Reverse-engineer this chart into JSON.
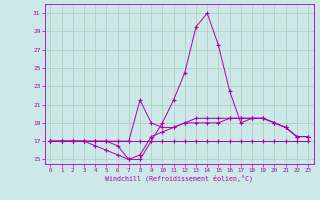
{
  "xlabel": "Windchill (Refroidissement éolien,°C)",
  "bg_color": "#cce8e8",
  "grid_color": "#aaccbb",
  "line_color": "#aa00aa",
  "xlim": [
    -0.5,
    23.5
  ],
  "ylim": [
    14.5,
    32.0
  ],
  "yticks": [
    15,
    17,
    19,
    21,
    23,
    25,
    27,
    29,
    31
  ],
  "xticks": [
    0,
    1,
    2,
    3,
    4,
    5,
    6,
    7,
    8,
    9,
    10,
    11,
    12,
    13,
    14,
    15,
    16,
    17,
    18,
    19,
    20,
    21,
    22,
    23
  ],
  "series": [
    {
      "x": [
        0,
        1,
        2,
        3,
        4,
        5,
        6,
        7,
        8,
        9,
        10,
        11,
        12,
        13,
        14,
        15,
        16,
        17,
        18,
        19,
        20,
        21,
        22,
        23
      ],
      "y": [
        17,
        17,
        17,
        17,
        17,
        17,
        17,
        17,
        17,
        17,
        17,
        17,
        17,
        17,
        17,
        17,
        17,
        17,
        17,
        17,
        17,
        17,
        17,
        17
      ]
    },
    {
      "x": [
        0,
        1,
        2,
        3,
        4,
        5,
        6,
        7,
        8,
        9,
        10,
        11,
        12,
        13,
        14,
        15,
        16,
        17,
        18,
        19,
        20,
        21,
        22,
        23
      ],
      "y": [
        17,
        17,
        17,
        17,
        16.5,
        16,
        15.5,
        15,
        15.5,
        17.5,
        18,
        18.5,
        19,
        19.5,
        19.5,
        19.5,
        19.5,
        19.5,
        19.5,
        19.5,
        19,
        18.5,
        17.5,
        17.5
      ]
    },
    {
      "x": [
        0,
        1,
        2,
        3,
        4,
        5,
        6,
        7,
        8,
        9,
        10,
        11,
        12,
        13,
        14,
        15,
        16,
        17,
        18,
        19,
        20,
        21,
        22,
        23
      ],
      "y": [
        17,
        17,
        17,
        17,
        17,
        17,
        16.5,
        15,
        15,
        17,
        19,
        21.5,
        24.5,
        29.5,
        31,
        27.5,
        22.5,
        19,
        19.5,
        19.5,
        19,
        18.5,
        17.5,
        17.5
      ]
    },
    {
      "x": [
        0,
        1,
        2,
        3,
        4,
        5,
        6,
        7,
        8,
        9,
        10,
        11,
        12,
        13,
        14,
        15,
        16,
        17,
        18,
        19,
        20,
        21,
        22,
        23
      ],
      "y": [
        17,
        17,
        17,
        17,
        17,
        17,
        17,
        17,
        21.5,
        19,
        18.5,
        18.5,
        19,
        19,
        19,
        19,
        19.5,
        19.5,
        19.5,
        19.5,
        19,
        18.5,
        17.5,
        17.5
      ]
    }
  ]
}
